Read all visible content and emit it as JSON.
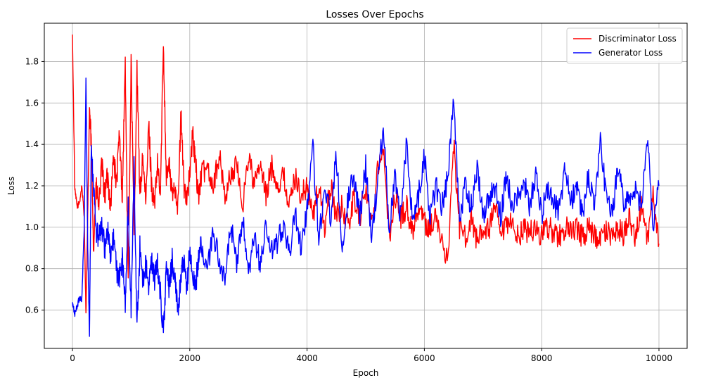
{
  "chart_data": {
    "type": "line",
    "title": "Losses Over Epochs",
    "xlabel": "Epoch",
    "ylabel": "Loss",
    "xlim": [
      -480,
      10480
    ],
    "ylim": [
      0.415,
      1.985
    ],
    "xticks": [
      0,
      2000,
      4000,
      6000,
      8000,
      10000
    ],
    "yticks": [
      0.6,
      0.8,
      1.0,
      1.2,
      1.4,
      1.6,
      1.8
    ],
    "xtick_labels": [
      "0",
      "2000",
      "4000",
      "6000",
      "8000",
      "10000"
    ],
    "ytick_labels": [
      "0.6",
      "0.8",
      "1.0",
      "1.2",
      "1.4",
      "1.6",
      "1.8"
    ],
    "grid": true,
    "legend_position": "top-right",
    "series": [
      {
        "name": "Discriminator Loss",
        "color": "#ff0000",
        "x": [
          0,
          40,
          80,
          120,
          160,
          200,
          230,
          260,
          290,
          320,
          360,
          400,
          450,
          500,
          550,
          600,
          650,
          700,
          750,
          800,
          850,
          900,
          950,
          1000,
          1050,
          1100,
          1150,
          1200,
          1250,
          1300,
          1350,
          1400,
          1450,
          1500,
          1550,
          1600,
          1650,
          1700,
          1750,
          1800,
          1850,
          1900,
          1950,
          2000,
          2050,
          2100,
          2150,
          2200,
          2300,
          2400,
          2500,
          2600,
          2700,
          2800,
          2900,
          3000,
          3100,
          3200,
          3300,
          3400,
          3500,
          3600,
          3700,
          3800,
          3900,
          4000,
          4100,
          4200,
          4300,
          4400,
          4500,
          4600,
          4700,
          4800,
          4900,
          5000,
          5100,
          5200,
          5300,
          5400,
          5500,
          5600,
          5700,
          5800,
          5900,
          6000,
          6100,
          6200,
          6300,
          6400,
          6500,
          6600,
          6700,
          6800,
          6900,
          7000,
          7100,
          7200,
          7300,
          7400,
          7500,
          7600,
          7700,
          7800,
          7900,
          8000,
          8100,
          8200,
          8300,
          8400,
          8500,
          8600,
          8700,
          8800,
          8900,
          9000,
          9100,
          9200,
          9300,
          9400,
          9500,
          9600,
          9700,
          9800,
          9900,
          10000
        ],
        "y": [
          1.92,
          1.18,
          1.1,
          1.12,
          1.2,
          1.05,
          0.58,
          1.05,
          1.58,
          1.4,
          0.9,
          1.2,
          1.1,
          1.3,
          1.15,
          1.25,
          1.1,
          1.35,
          1.2,
          1.45,
          1.15,
          1.8,
          0.7,
          1.82,
          0.95,
          1.75,
          1.15,
          1.35,
          1.1,
          1.5,
          1.2,
          1.1,
          1.3,
          1.15,
          1.9,
          1.25,
          1.3,
          1.15,
          1.2,
          1.1,
          1.55,
          1.2,
          1.15,
          1.25,
          1.45,
          1.3,
          1.15,
          1.25,
          1.3,
          1.2,
          1.35,
          1.15,
          1.25,
          1.3,
          1.1,
          1.35,
          1.2,
          1.3,
          1.15,
          1.3,
          1.2,
          1.25,
          1.1,
          1.25,
          1.15,
          1.2,
          1.05,
          1.2,
          1.0,
          1.2,
          1.05,
          1.1,
          1.0,
          1.15,
          1.05,
          1.2,
          1.0,
          1.3,
          1.38,
          0.95,
          1.15,
          1.05,
          1.1,
          0.98,
          1.1,
          1.02,
          1.0,
          1.05,
          0.92,
          0.85,
          1.4,
          1.0,
          0.95,
          1.05,
          0.92,
          1.0,
          0.98,
          1.1,
          0.95,
          1.0,
          1.02,
          0.95,
          1.0,
          0.97,
          1.0,
          0.96,
          1.0,
          0.98,
          0.95,
          1.0,
          0.97,
          0.99,
          0.95,
          1.0,
          0.96,
          0.93,
          0.98,
          0.95,
          1.0,
          0.96,
          1.05,
          0.95,
          1.1,
          0.93,
          1.15,
          0.92
        ]
      },
      {
        "name": "Generator Loss",
        "color": "#0000ff",
        "x": [
          0,
          40,
          80,
          120,
          160,
          200,
          230,
          260,
          290,
          320,
          360,
          400,
          450,
          500,
          550,
          600,
          650,
          700,
          750,
          800,
          850,
          900,
          950,
          1000,
          1050,
          1100,
          1150,
          1200,
          1250,
          1300,
          1350,
          1400,
          1450,
          1500,
          1550,
          1600,
          1650,
          1700,
          1750,
          1800,
          1850,
          1900,
          1950,
          2000,
          2050,
          2100,
          2150,
          2200,
          2300,
          2400,
          2500,
          2600,
          2700,
          2800,
          2900,
          3000,
          3100,
          3200,
          3300,
          3400,
          3500,
          3600,
          3700,
          3800,
          3900,
          4000,
          4100,
          4200,
          4300,
          4400,
          4500,
          4600,
          4700,
          4800,
          4900,
          5000,
          5100,
          5200,
          5300,
          5400,
          5500,
          5600,
          5700,
          5800,
          5900,
          6000,
          6100,
          6200,
          6300,
          6400,
          6500,
          6600,
          6700,
          6800,
          6900,
          7000,
          7100,
          7200,
          7300,
          7400,
          7500,
          7600,
          7700,
          7800,
          7900,
          8000,
          8100,
          8200,
          8300,
          8400,
          8500,
          8600,
          8700,
          8800,
          8900,
          9000,
          9100,
          9200,
          9300,
          9400,
          9500,
          9600,
          9700,
          9800,
          9900,
          10000
        ],
        "y": [
          0.63,
          0.58,
          0.62,
          0.66,
          0.65,
          1.0,
          1.72,
          0.9,
          0.48,
          1.4,
          1.2,
          0.98,
          0.95,
          1.0,
          0.9,
          0.98,
          0.85,
          0.95,
          0.8,
          0.75,
          0.85,
          0.62,
          1.1,
          0.6,
          1.3,
          0.51,
          0.9,
          0.75,
          0.82,
          0.7,
          0.85,
          0.75,
          0.82,
          0.68,
          0.48,
          0.8,
          0.7,
          0.85,
          0.72,
          0.6,
          0.78,
          0.82,
          0.7,
          0.9,
          0.75,
          0.72,
          0.85,
          0.92,
          0.78,
          0.98,
          0.85,
          0.72,
          1.02,
          0.8,
          1.05,
          0.75,
          0.95,
          0.82,
          1.0,
          0.88,
          0.92,
          1.02,
          0.88,
          1.05,
          0.9,
          1.1,
          1.38,
          0.95,
          1.2,
          1.05,
          1.35,
          0.9,
          1.15,
          1.25,
          1.05,
          1.3,
          0.95,
          1.2,
          1.5,
          1.0,
          1.25,
          1.05,
          1.42,
          1.02,
          1.15,
          1.35,
          1.05,
          1.2,
          1.1,
          1.25,
          1.62,
          1.05,
          1.2,
          1.1,
          1.3,
          1.05,
          1.15,
          1.2,
          1.05,
          1.25,
          1.1,
          1.15,
          1.22,
          1.1,
          1.25,
          1.05,
          1.2,
          1.12,
          1.08,
          1.3,
          1.12,
          1.2,
          1.05,
          1.25,
          1.1,
          1.4,
          1.15,
          1.05,
          1.3,
          1.1,
          1.15,
          1.2,
          1.1,
          1.43,
          1.0,
          1.2
        ]
      }
    ]
  }
}
